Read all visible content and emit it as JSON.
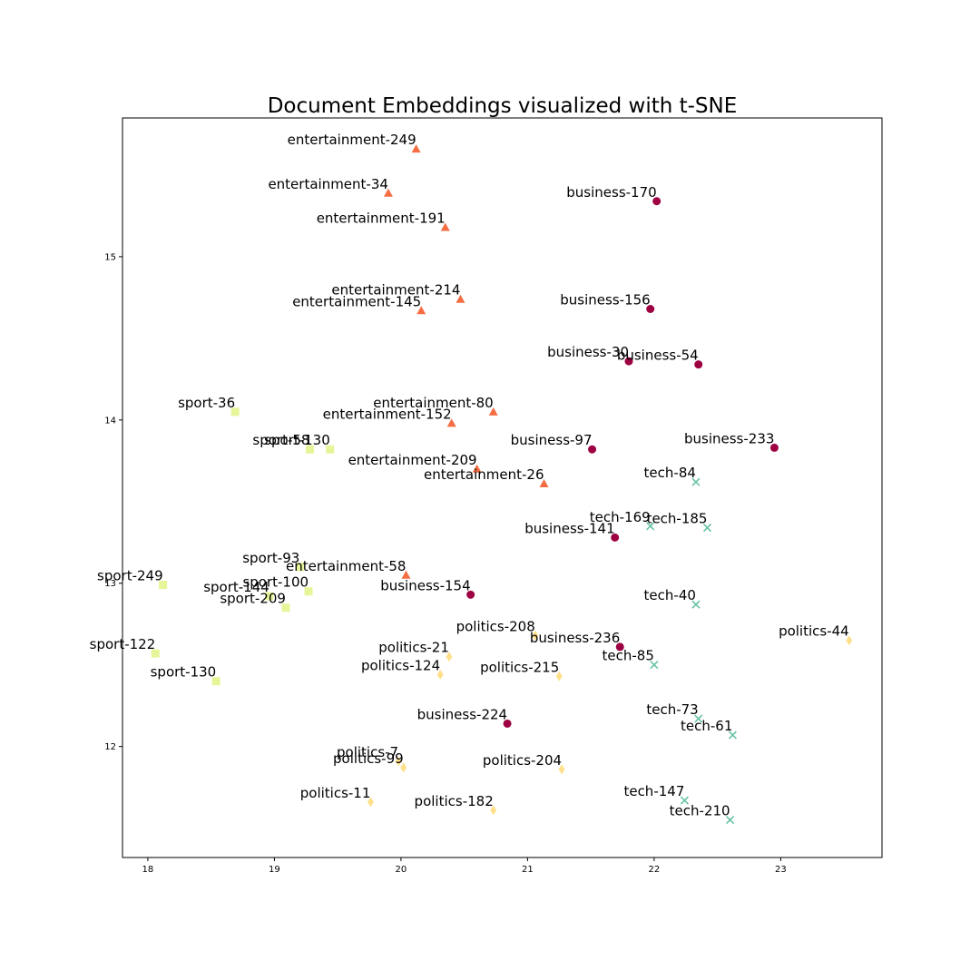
{
  "chart_data": {
    "type": "scatter",
    "title": "Document Embeddings visualized with t-SNE",
    "xlabel": "",
    "ylabel": "",
    "xlim": [
      17.8,
      23.8
    ],
    "ylim": [
      11.32,
      15.85
    ],
    "xticks": [
      18,
      19,
      20,
      21,
      22,
      23
    ],
    "yticks": [
      12,
      13,
      14,
      15
    ],
    "grid": false,
    "legend": "none",
    "categories": {
      "business": {
        "marker": "circle",
        "color": "#9e0142"
      },
      "entertainment": {
        "marker": "triangle",
        "color": "#f46d43"
      },
      "sport": {
        "marker": "square",
        "color": "#e6f598"
      },
      "politics": {
        "marker": "diamond",
        "color": "#fee08b"
      },
      "tech": {
        "marker": "x",
        "color": "#66c2a5"
      }
    },
    "points": [
      {
        "label": "entertainment-249",
        "category": "entertainment",
        "x": 20.12,
        "y": 15.66
      },
      {
        "label": "entertainment-34",
        "category": "entertainment",
        "x": 19.9,
        "y": 15.39
      },
      {
        "label": "entertainment-191",
        "category": "entertainment",
        "x": 20.35,
        "y": 15.18
      },
      {
        "label": "entertainment-214",
        "category": "entertainment",
        "x": 20.47,
        "y": 14.74
      },
      {
        "label": "entertainment-145",
        "category": "entertainment",
        "x": 20.16,
        "y": 14.67
      },
      {
        "label": "entertainment-80",
        "category": "entertainment",
        "x": 20.73,
        "y": 14.05
      },
      {
        "label": "entertainment-152",
        "category": "entertainment",
        "x": 20.4,
        "y": 13.98
      },
      {
        "label": "entertainment-209",
        "category": "entertainment",
        "x": 20.6,
        "y": 13.7
      },
      {
        "label": "entertainment-26",
        "category": "entertainment",
        "x": 21.13,
        "y": 13.61
      },
      {
        "label": "entertainment-58",
        "category": "entertainment",
        "x": 20.04,
        "y": 13.05
      },
      {
        "label": "business-170",
        "category": "business",
        "x": 22.02,
        "y": 15.34
      },
      {
        "label": "business-156",
        "category": "business",
        "x": 21.97,
        "y": 14.68
      },
      {
        "label": "business-30",
        "category": "business",
        "x": 21.8,
        "y": 14.36
      },
      {
        "label": "business-54",
        "category": "business",
        "x": 22.35,
        "y": 14.34
      },
      {
        "label": "business-97",
        "category": "business",
        "x": 21.51,
        "y": 13.82
      },
      {
        "label": "business-233",
        "category": "business",
        "x": 22.95,
        "y": 13.83
      },
      {
        "label": "business-141",
        "category": "business",
        "x": 21.69,
        "y": 13.28
      },
      {
        "label": "business-154",
        "category": "business",
        "x": 20.55,
        "y": 12.93
      },
      {
        "label": "business-236",
        "category": "business",
        "x": 21.73,
        "y": 12.61
      },
      {
        "label": "business-224",
        "category": "business",
        "x": 20.84,
        "y": 12.14
      },
      {
        "label": "sport-36",
        "category": "sport",
        "x": 18.69,
        "y": 14.05
      },
      {
        "label": "sport-58",
        "category": "sport",
        "x": 19.28,
        "y": 13.82
      },
      {
        "label": "sport-130",
        "category": "sport",
        "x": 19.44,
        "y": 13.82
      },
      {
        "label": "sport-93",
        "category": "sport",
        "x": 19.2,
        "y": 13.1
      },
      {
        "label": "sport-249",
        "category": "sport",
        "x": 18.12,
        "y": 12.99
      },
      {
        "label": "sport-144",
        "category": "sport",
        "x": 18.96,
        "y": 12.92
      },
      {
        "label": "sport-100",
        "category": "sport",
        "x": 19.27,
        "y": 12.95
      },
      {
        "label": "sport-209",
        "category": "sport",
        "x": 19.09,
        "y": 12.85
      },
      {
        "label": "sport-122",
        "category": "sport",
        "x": 18.06,
        "y": 12.57
      },
      {
        "label": "sport-130",
        "category": "sport",
        "x": 18.54,
        "y": 12.4
      },
      {
        "label": "politics-208",
        "category": "politics",
        "x": 21.06,
        "y": 12.68
      },
      {
        "label": "politics-21",
        "category": "politics",
        "x": 20.38,
        "y": 12.55
      },
      {
        "label": "politics-124",
        "category": "politics",
        "x": 20.31,
        "y": 12.44
      },
      {
        "label": "politics-215",
        "category": "politics",
        "x": 21.25,
        "y": 12.43
      },
      {
        "label": "politics-44",
        "category": "politics",
        "x": 23.54,
        "y": 12.65
      },
      {
        "label": "politics-7",
        "category": "politics",
        "x": 19.98,
        "y": 11.91
      },
      {
        "label": "politics-99",
        "category": "politics",
        "x": 20.02,
        "y": 11.87
      },
      {
        "label": "politics-204",
        "category": "politics",
        "x": 21.27,
        "y": 11.86
      },
      {
        "label": "politics-11",
        "category": "politics",
        "x": 19.76,
        "y": 11.66
      },
      {
        "label": "politics-182",
        "category": "politics",
        "x": 20.73,
        "y": 11.61
      },
      {
        "label": "tech-84",
        "category": "tech",
        "x": 22.33,
        "y": 13.62
      },
      {
        "label": "tech-169",
        "category": "tech",
        "x": 21.97,
        "y": 13.35
      },
      {
        "label": "tech-185",
        "category": "tech",
        "x": 22.42,
        "y": 13.34
      },
      {
        "label": "tech-40",
        "category": "tech",
        "x": 22.33,
        "y": 12.87
      },
      {
        "label": "tech-85",
        "category": "tech",
        "x": 22.0,
        "y": 12.5
      },
      {
        "label": "tech-73",
        "category": "tech",
        "x": 22.35,
        "y": 12.17
      },
      {
        "label": "tech-61",
        "category": "tech",
        "x": 22.62,
        "y": 12.07
      },
      {
        "label": "tech-147",
        "category": "tech",
        "x": 22.24,
        "y": 11.67
      },
      {
        "label": "tech-210",
        "category": "tech",
        "x": 22.6,
        "y": 11.55
      }
    ]
  }
}
